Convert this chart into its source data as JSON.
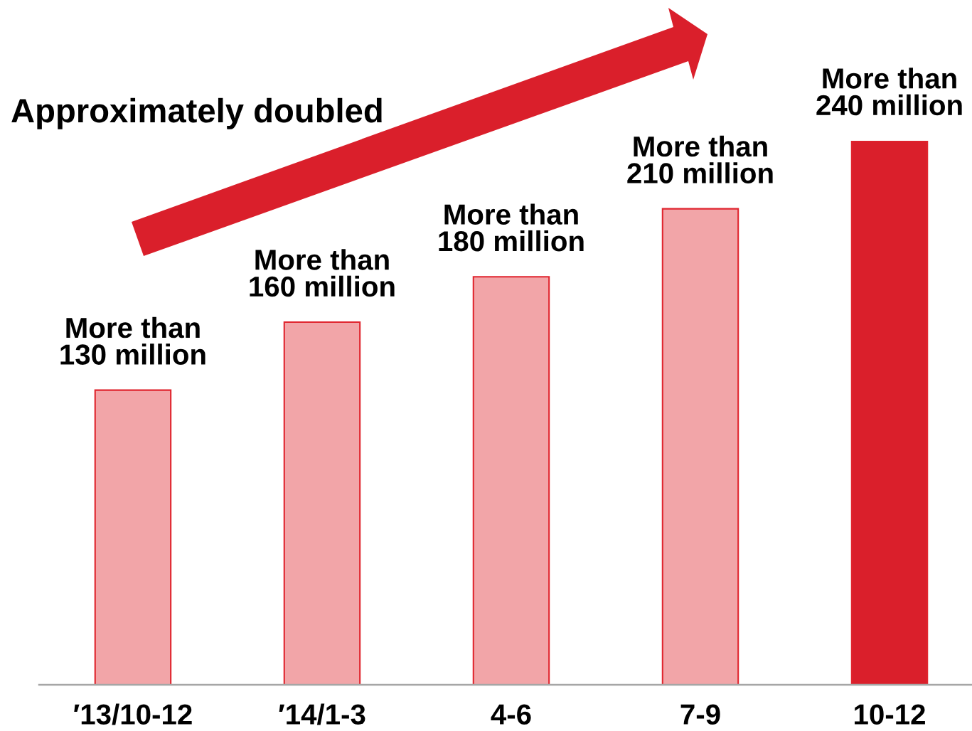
{
  "chart_data": {
    "type": "bar",
    "categories": [
      "′13/10-12",
      "′14/1-3",
      "4-6",
      "7-9",
      "10-12"
    ],
    "values": [
      130000000,
      160000000,
      180000000,
      210000000,
      240000000
    ],
    "colors": [
      "#f2a5a8",
      "#f2a5a8",
      "#f2a5a8",
      "#f2a5a8",
      "#da1f2b"
    ],
    "value_labels": [
      "More than\n130 million",
      "More than\n160 million",
      "More than\n180 million",
      "More than\n210 million",
      "More than\n240 million"
    ],
    "tick_labels": "x",
    "annotations": [
      "Approximately doubled"
    ]
  }
}
